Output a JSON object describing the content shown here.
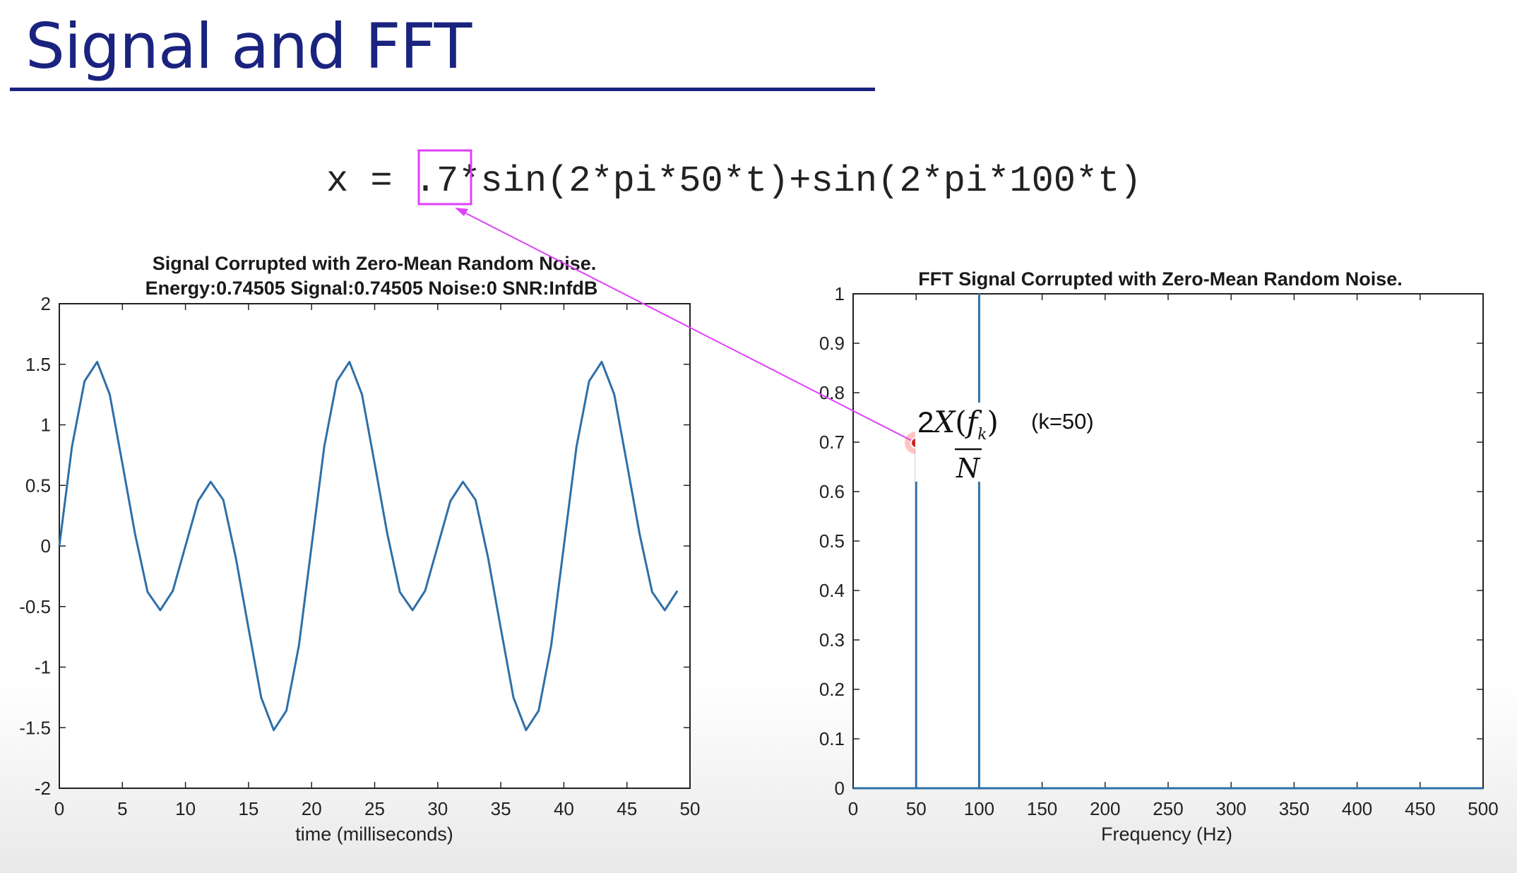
{
  "slide": {
    "title": "Signal and FFT",
    "title_color": "#1a237e"
  },
  "equation": {
    "text": "x = .7*sin(2*pi*50*t)+sin(2*pi*100*t)",
    "highlighted": ".7",
    "highlight_color": "#e040fb"
  },
  "annotation": {
    "formula_numerator": "2X(f_k)",
    "formula_denominator": "N",
    "note": "(k=50)",
    "marker_color": "#e53935",
    "arrow_color": "#e040fb"
  },
  "chart_data": [
    {
      "type": "line",
      "title": "Signal Corrupted with Zero-Mean Random Noise.",
      "subtitle": "Energy:0.74505 Signal:0.74505 Noise:0 SNR:InfdB",
      "xlabel": "time (milliseconds)",
      "ylabel": "",
      "xlim": [
        0,
        50
      ],
      "ylim": [
        -2,
        2
      ],
      "xticks": [
        0,
        5,
        10,
        15,
        20,
        25,
        30,
        35,
        40,
        45,
        50
      ],
      "yticks": [
        -2,
        -1.5,
        -1,
        -0.5,
        0,
        0.5,
        1,
        1.5,
        2
      ],
      "grid": false,
      "line_color": "#2e6fa7",
      "series": [
        {
          "x": [
            0,
            1,
            2,
            3,
            4,
            5,
            6,
            7,
            8,
            9,
            10,
            11,
            12,
            13,
            14,
            15,
            16,
            17,
            18,
            19,
            20,
            21,
            22,
            23,
            24,
            25,
            26,
            27,
            28,
            29,
            30,
            31,
            32,
            33,
            34,
            35,
            36,
            37,
            38,
            39,
            40,
            41,
            42,
            43,
            44,
            45,
            46,
            47,
            48,
            49
          ],
          "values": [
            0,
            0.82,
            1.36,
            1.52,
            1.25,
            0.68,
            0.1,
            -0.38,
            -0.53,
            -0.37,
            0,
            0.37,
            0.53,
            0.38,
            -0.1,
            -0.68,
            -1.25,
            -1.52,
            -1.36,
            -0.82,
            0,
            0.82,
            1.36,
            1.52,
            1.25,
            0.68,
            0.1,
            -0.38,
            -0.53,
            -0.37,
            0,
            0.37,
            0.53,
            0.38,
            -0.1,
            -0.68,
            -1.25,
            -1.52,
            -1.36,
            -0.82,
            0,
            0.82,
            1.36,
            1.52,
            1.25,
            0.68,
            0.1,
            -0.38,
            -0.53,
            -0.37
          ]
        }
      ]
    },
    {
      "type": "line",
      "title": "FFT Signal Corrupted with Zero-Mean Random Noise.",
      "xlabel": "Frequency (Hz)",
      "ylabel": "",
      "xlim": [
        0,
        500
      ],
      "ylim": [
        0,
        1
      ],
      "xticks": [
        0,
        50,
        100,
        150,
        200,
        250,
        300,
        350,
        400,
        450,
        500
      ],
      "yticks": [
        0,
        0.1,
        0.2,
        0.3,
        0.4,
        0.5,
        0.6,
        0.7,
        0.8,
        0.9,
        1
      ],
      "grid": false,
      "line_color": "#2e6fa7",
      "series": [
        {
          "x": [
            0,
            50,
            50,
            50,
            100,
            100,
            100,
            500
          ],
          "values": [
            0,
            0,
            0.7,
            0,
            0,
            1,
            0,
            0
          ]
        }
      ]
    }
  ]
}
